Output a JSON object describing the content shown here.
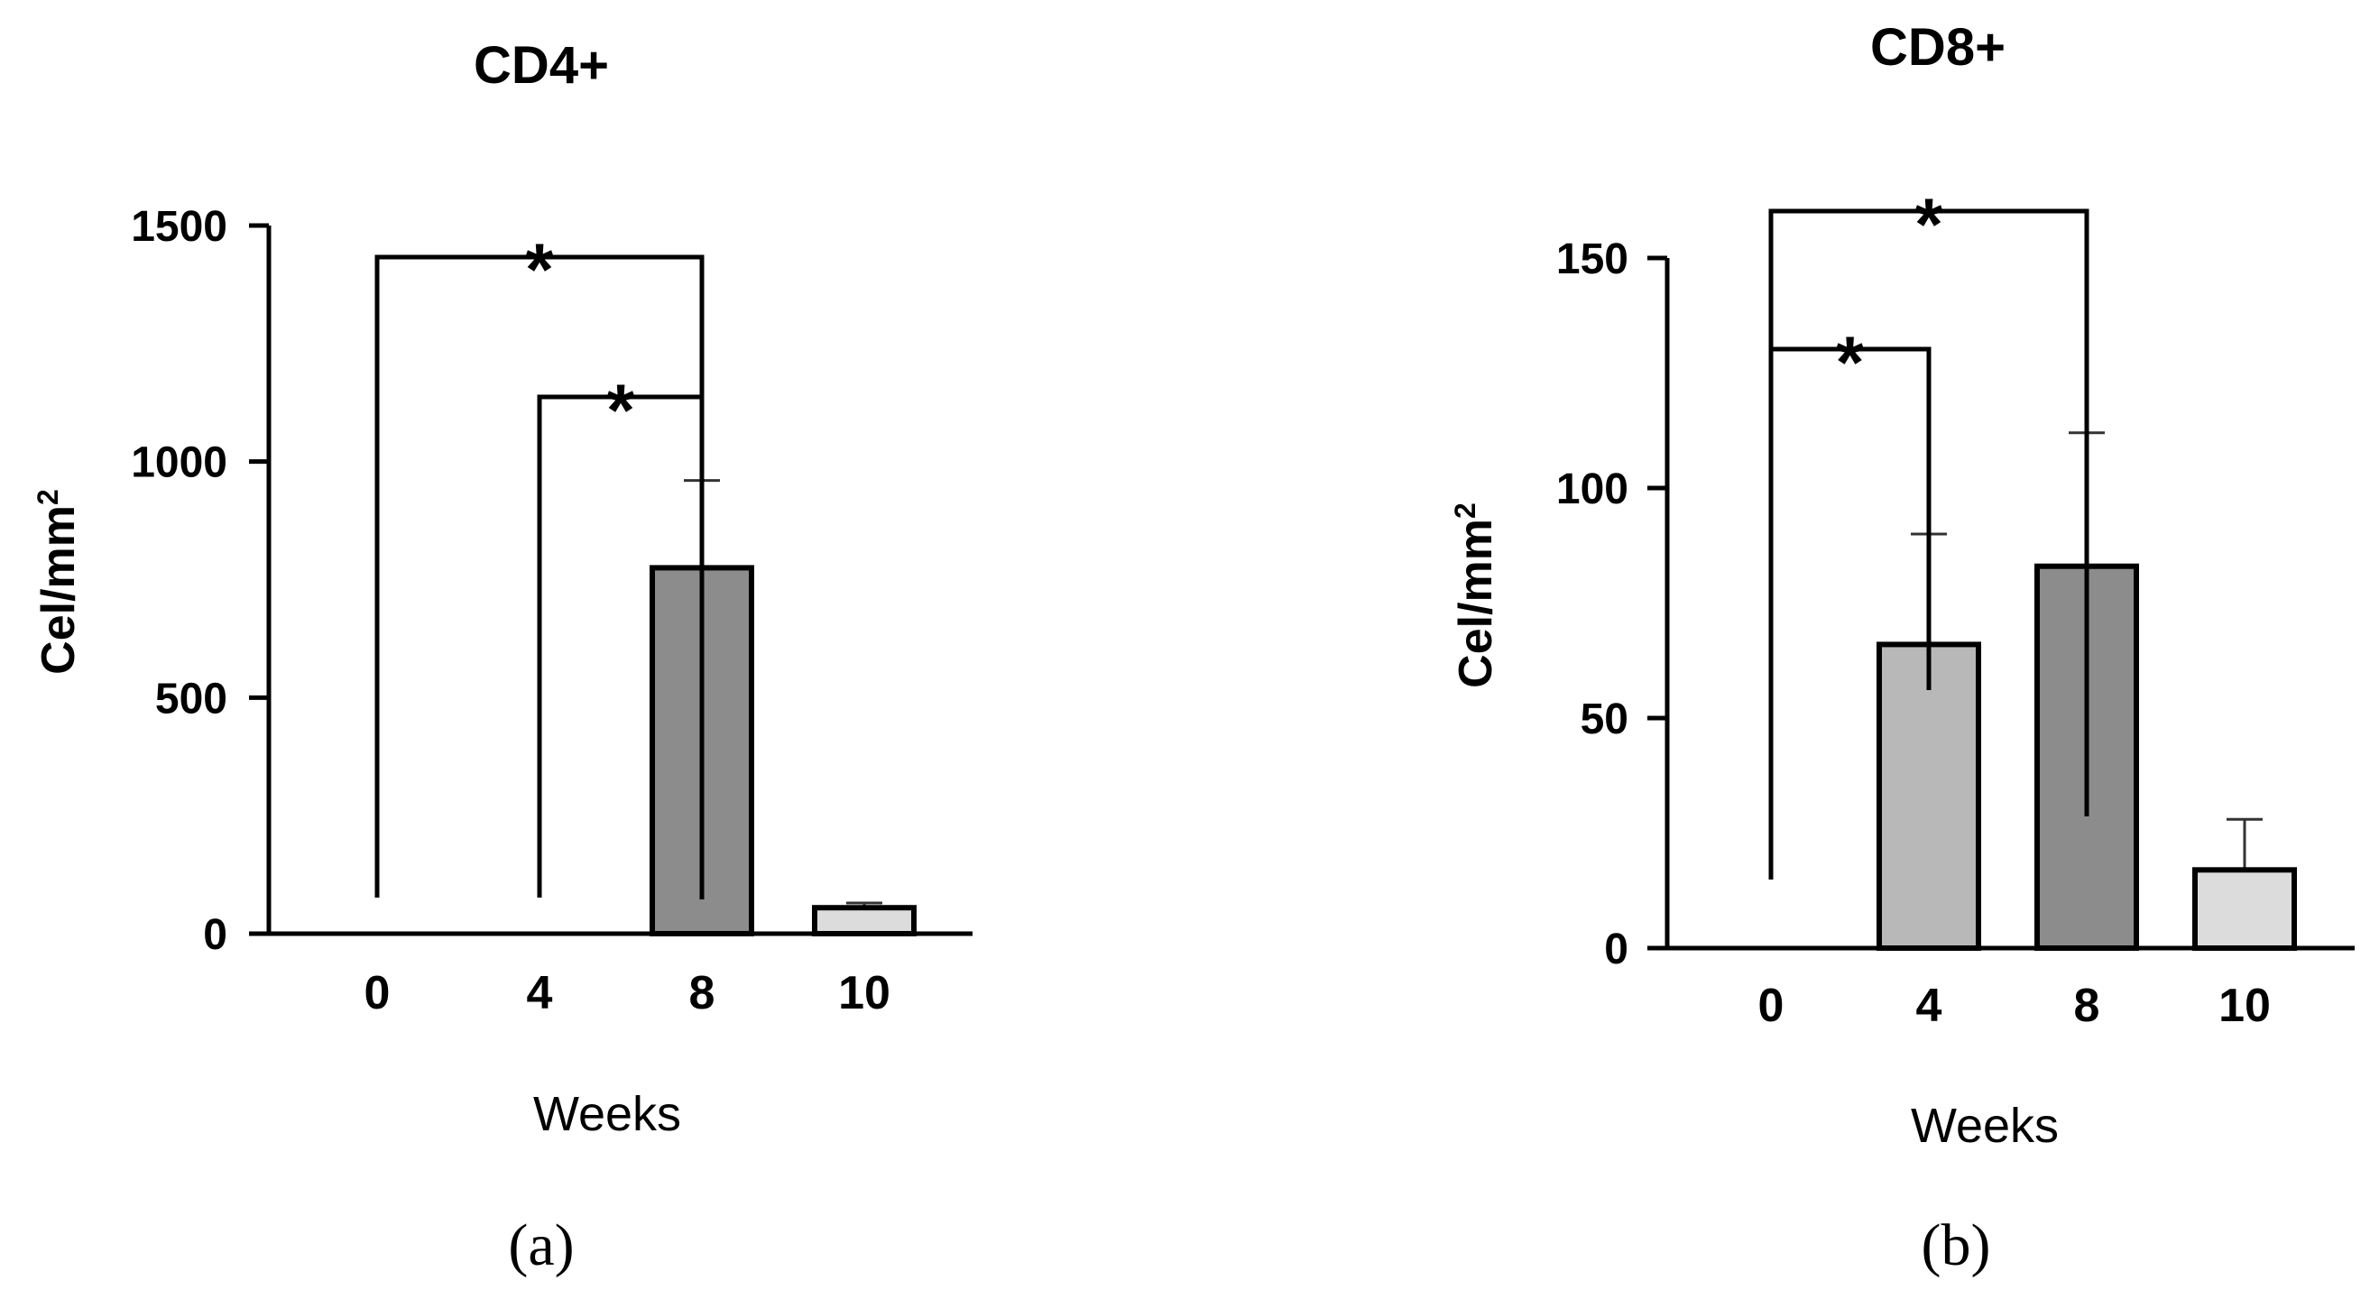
{
  "figure": {
    "panels": [
      "(a)",
      "(b)"
    ]
  },
  "chart_data": [
    {
      "type": "bar",
      "title": "CD4+",
      "ylabel_main": "Cel/mm",
      "ylabel_sup": "2",
      "xlabel": "Weeks",
      "categories": [
        "0",
        "4",
        "8",
        "10"
      ],
      "values": [
        0,
        0,
        775,
        55
      ],
      "errors": [
        0,
        0,
        185,
        10
      ],
      "bar_colors": [
        "#b8b8b8",
        "#b8b8b8",
        "#8c8c8c",
        "#dcdcdc"
      ],
      "ylim": [
        0,
        1500
      ],
      "yticks": [
        "0",
        "500",
        "1000",
        "1500"
      ],
      "significance": [
        {
          "from": "0",
          "to": "8",
          "label": "*"
        },
        {
          "from": "4",
          "to": "8",
          "label": "*"
        }
      ]
    },
    {
      "type": "bar",
      "title": "CD8+",
      "ylabel_main": "Cel/mm",
      "ylabel_sup": "2",
      "xlabel": "Weeks",
      "categories": [
        "0",
        "4",
        "8",
        "10"
      ],
      "values": [
        0,
        66,
        83,
        17
      ],
      "errors": [
        0,
        24,
        29,
        11
      ],
      "bar_colors": [
        "#b8b8b8",
        "#b8b8b8",
        "#8c8c8c",
        "#dcdcdc"
      ],
      "ylim": [
        0,
        150
      ],
      "yticks": [
        "0",
        "50",
        "100",
        "150"
      ],
      "significance": [
        {
          "from": "0",
          "to": "4",
          "label": "*"
        },
        {
          "from": "0",
          "to": "8",
          "label": "*"
        }
      ]
    }
  ]
}
